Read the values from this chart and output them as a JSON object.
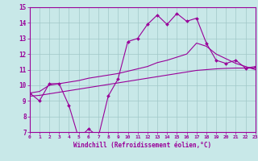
{
  "xlabel": "Windchill (Refroidissement éolien,°C)",
  "bg_color": "#c8e8e8",
  "grid_color": "#a0c8c8",
  "line_color": "#990099",
  "xlim": [
    0,
    23
  ],
  "ylim": [
    7,
    15
  ],
  "xticks": [
    0,
    1,
    2,
    3,
    4,
    5,
    6,
    7,
    8,
    9,
    10,
    11,
    12,
    13,
    14,
    15,
    16,
    17,
    18,
    19,
    20,
    21,
    22,
    23
  ],
  "yticks": [
    7,
    8,
    9,
    10,
    11,
    12,
    13,
    14,
    15
  ],
  "line1_x": [
    0,
    1,
    2,
    3,
    4,
    5,
    6,
    7,
    8,
    9,
    10,
    11,
    12,
    13,
    14,
    15,
    16,
    17,
    18,
    19,
    20,
    21,
    22,
    23
  ],
  "line1_y": [
    9.5,
    9.0,
    10.1,
    10.1,
    8.7,
    6.6,
    7.2,
    6.7,
    9.3,
    10.4,
    12.8,
    13.0,
    13.9,
    14.5,
    13.9,
    14.6,
    14.1,
    14.3,
    12.7,
    11.6,
    11.4,
    11.6,
    11.1,
    11.2
  ],
  "line2_x": [
    0,
    1,
    2,
    3,
    4,
    5,
    6,
    7,
    8,
    9,
    10,
    11,
    12,
    13,
    14,
    15,
    16,
    17,
    18,
    19,
    20,
    21,
    22,
    23
  ],
  "line2_y": [
    9.5,
    9.6,
    10.0,
    10.1,
    10.2,
    10.3,
    10.45,
    10.55,
    10.65,
    10.75,
    10.9,
    11.05,
    11.2,
    11.45,
    11.6,
    11.8,
    12.0,
    12.7,
    12.5,
    12.0,
    11.7,
    11.4,
    11.2,
    11.0
  ],
  "line3_x": [
    0,
    1,
    2,
    3,
    4,
    5,
    6,
    7,
    8,
    9,
    10,
    11,
    12,
    13,
    14,
    15,
    16,
    17,
    18,
    19,
    20,
    21,
    22,
    23
  ],
  "line3_y": [
    9.3,
    9.35,
    9.45,
    9.55,
    9.65,
    9.75,
    9.85,
    9.95,
    10.05,
    10.15,
    10.25,
    10.35,
    10.45,
    10.55,
    10.65,
    10.75,
    10.85,
    10.95,
    11.0,
    11.05,
    11.08,
    11.1,
    11.1,
    11.1
  ]
}
